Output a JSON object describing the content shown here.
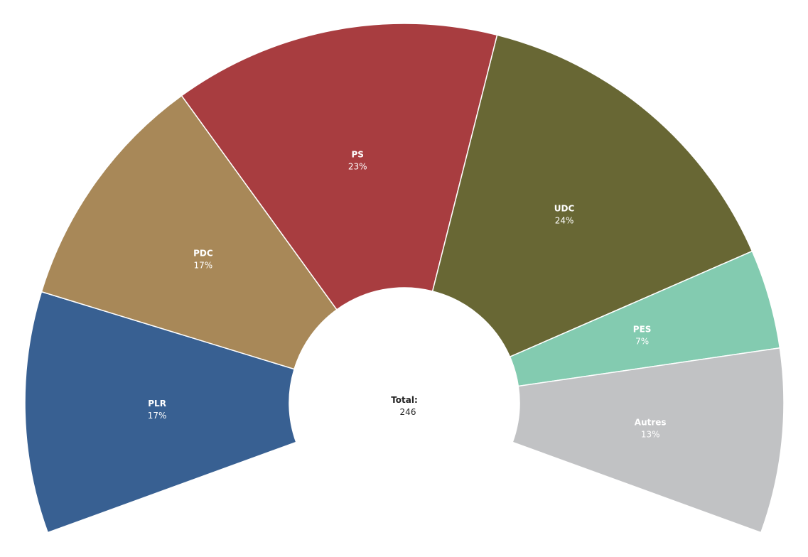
{
  "chart_data": {
    "type": "pie",
    "variant": "semi-donut",
    "start_angle_deg": 250,
    "end_angle_deg": 110,
    "segments": [
      {
        "name": "PLR",
        "value": 17,
        "label": "17%",
        "color": "#386092"
      },
      {
        "name": "PDC",
        "value": 17,
        "label": "17%",
        "color": "#a88858"
      },
      {
        "name": "PS",
        "value": 23,
        "label": "23%",
        "color": "#a83d40"
      },
      {
        "name": "UDC",
        "value": 24,
        "label": "24%",
        "color": "#686734"
      },
      {
        "name": "PES",
        "value": 7,
        "label": "7%",
        "color": "#83cbb0"
      },
      {
        "name": "Autres",
        "value": 13,
        "label": "13%",
        "color": "#c1c2c4"
      }
    ],
    "total": {
      "label": "Total:",
      "value": "246"
    }
  }
}
